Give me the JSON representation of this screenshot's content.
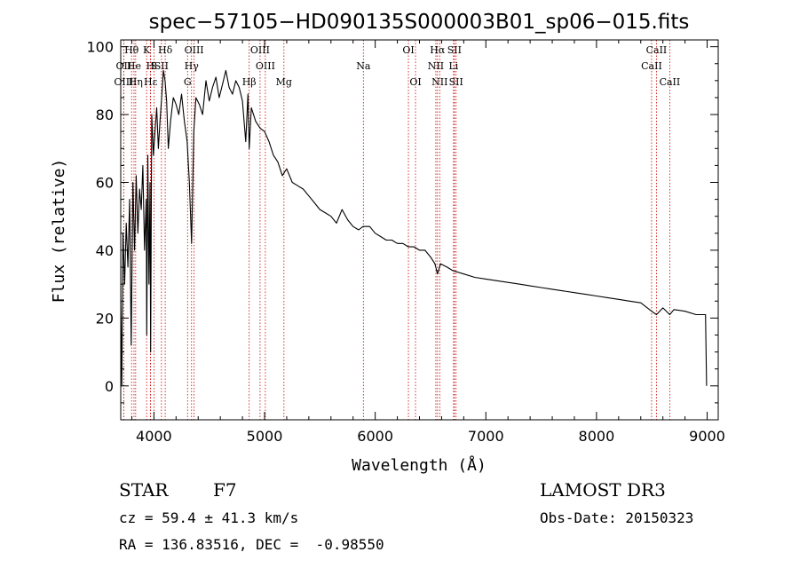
{
  "chart_data": {
    "type": "line",
    "title": "spec−57105−HD090135S000003B01_sp06−015.fits",
    "xlabel": "Wavelength (Å)",
    "ylabel": "Flux (relative)",
    "xlim": [
      3700,
      9100
    ],
    "ylim": [
      -10,
      102
    ],
    "xticks": [
      4000,
      5000,
      6000,
      7000,
      8000,
      9000
    ],
    "yticks": [
      0,
      20,
      40,
      60,
      80,
      100
    ],
    "series": [
      {
        "name": "flux",
        "x": [
          3700,
          3710,
          3720,
          3735,
          3750,
          3765,
          3780,
          3795,
          3810,
          3825,
          3840,
          3855,
          3870,
          3885,
          3900,
          3915,
          3930,
          3935,
          3945,
          3955,
          3965,
          3970,
          3980,
          3995,
          4010,
          4025,
          4040,
          4055,
          4070,
          4085,
          4100,
          4115,
          4130,
          4150,
          4175,
          4200,
          4225,
          4250,
          4275,
          4300,
          4320,
          4340,
          4360,
          4380,
          4410,
          4440,
          4470,
          4500,
          4530,
          4560,
          4590,
          4620,
          4650,
          4680,
          4710,
          4740,
          4770,
          4800,
          4830,
          4850,
          4861,
          4880,
          4920,
          4960,
          5000,
          5040,
          5080,
          5120,
          5160,
          5200,
          5250,
          5300,
          5350,
          5400,
          5450,
          5500,
          5550,
          5600,
          5650,
          5700,
          5750,
          5800,
          5850,
          5890,
          5950,
          6000,
          6050,
          6100,
          6150,
          6200,
          6250,
          6300,
          6350,
          6400,
          6450,
          6500,
          6540,
          6563,
          6590,
          6650,
          6700,
          6800,
          6900,
          7000,
          7100,
          7200,
          7300,
          7400,
          7500,
          7600,
          7700,
          7800,
          7900,
          8000,
          8100,
          8200,
          8300,
          8400,
          8498,
          8542,
          8600,
          8662,
          8700,
          8800,
          8900,
          8950,
          8985,
          8995
        ],
        "y": [
          25,
          0,
          45,
          30,
          48,
          35,
          55,
          12,
          60,
          40,
          62,
          45,
          58,
          52,
          65,
          40,
          55,
          15,
          68,
          30,
          60,
          10,
          80,
          68,
          75,
          82,
          70,
          78,
          85,
          93,
          90,
          84,
          70,
          78,
          85,
          83,
          80,
          86,
          78,
          72,
          60,
          42,
          75,
          85,
          83,
          80,
          90,
          84,
          88,
          91,
          85,
          89,
          93,
          88,
          86,
          90,
          88,
          84,
          72,
          86,
          70,
          82,
          78,
          76,
          75,
          72,
          68,
          66,
          62,
          64,
          60,
          59,
          58,
          56,
          54,
          52,
          51,
          50,
          48,
          52,
          49,
          47,
          46,
          47,
          47,
          45,
          44,
          43,
          43,
          42,
          42,
          41,
          41,
          40,
          40,
          38,
          36,
          33,
          36,
          35,
          34,
          33,
          32,
          31.5,
          31,
          30.5,
          30,
          29.5,
          29,
          28.5,
          28,
          27.5,
          27,
          26.5,
          26,
          25.5,
          25,
          24.5,
          22,
          21,
          23,
          21,
          22.5,
          22,
          21,
          21,
          21,
          0
        ]
      }
    ],
    "spectral_lines": [
      {
        "label": "Hθ",
        "x": 3798,
        "row": 0
      },
      {
        "label": "OII",
        "x": 3727,
        "row": 1
      },
      {
        "label": "OIII",
        "x": 3727,
        "row": 2
      },
      {
        "label": "He",
        "x": 3820,
        "row": 1
      },
      {
        "label": "Hη",
        "x": 3835,
        "row": 2
      },
      {
        "label": "K",
        "x": 3934,
        "row": 0
      },
      {
        "label": "H",
        "x": 3968,
        "row": 1
      },
      {
        "label": "S",
        "x": 4000,
        "row": 1
      },
      {
        "label": "Hε",
        "x": 3970,
        "row": 2
      },
      {
        "label": "Hδ",
        "x": 4102,
        "row": 0
      },
      {
        "label": "SII",
        "x": 4068,
        "row": 1
      },
      {
        "label": "OIII",
        "x": 4363,
        "row": 0
      },
      {
        "label": "Hγ",
        "x": 4340,
        "row": 1
      },
      {
        "label": "G",
        "x": 4304,
        "row": 2
      },
      {
        "label": "OIII",
        "x": 4959,
        "row": 0
      },
      {
        "label": "OIII",
        "x": 5007,
        "row": 1
      },
      {
        "label": "Hβ",
        "x": 4861,
        "row": 2
      },
      {
        "label": "Mg",
        "x": 5175,
        "row": 2
      },
      {
        "label": "Na",
        "x": 5893,
        "row": 1
      },
      {
        "label": "OI",
        "x": 6300,
        "row": 0
      },
      {
        "label": "OI",
        "x": 6364,
        "row": 2
      },
      {
        "label": "Hα",
        "x": 6563,
        "row": 0
      },
      {
        "label": "NII",
        "x": 6548,
        "row": 1
      },
      {
        "label": "NII",
        "x": 6583,
        "row": 2
      },
      {
        "label": "SII",
        "x": 6716,
        "row": 0
      },
      {
        "label": "Li",
        "x": 6708,
        "row": 1
      },
      {
        "label": "SII",
        "x": 6731,
        "row": 2
      },
      {
        "label": "CaII",
        "x": 8542,
        "row": 0
      },
      {
        "label": "CaII",
        "x": 8498,
        "row": 1
      },
      {
        "label": "CaII",
        "x": 8662,
        "row": 2
      }
    ]
  },
  "info": {
    "object_class": "STAR",
    "subclass": "F7",
    "survey": "LAMOST DR3",
    "redshift_line": "cz = 59.4 ± 41.3 km/s",
    "obs_date_line": "Obs-Date: 20150323",
    "coords_line": "RA = 136.83516, DEC =  -0.98550"
  },
  "colors": {
    "line": "#000000",
    "marker": "#cc0000"
  }
}
